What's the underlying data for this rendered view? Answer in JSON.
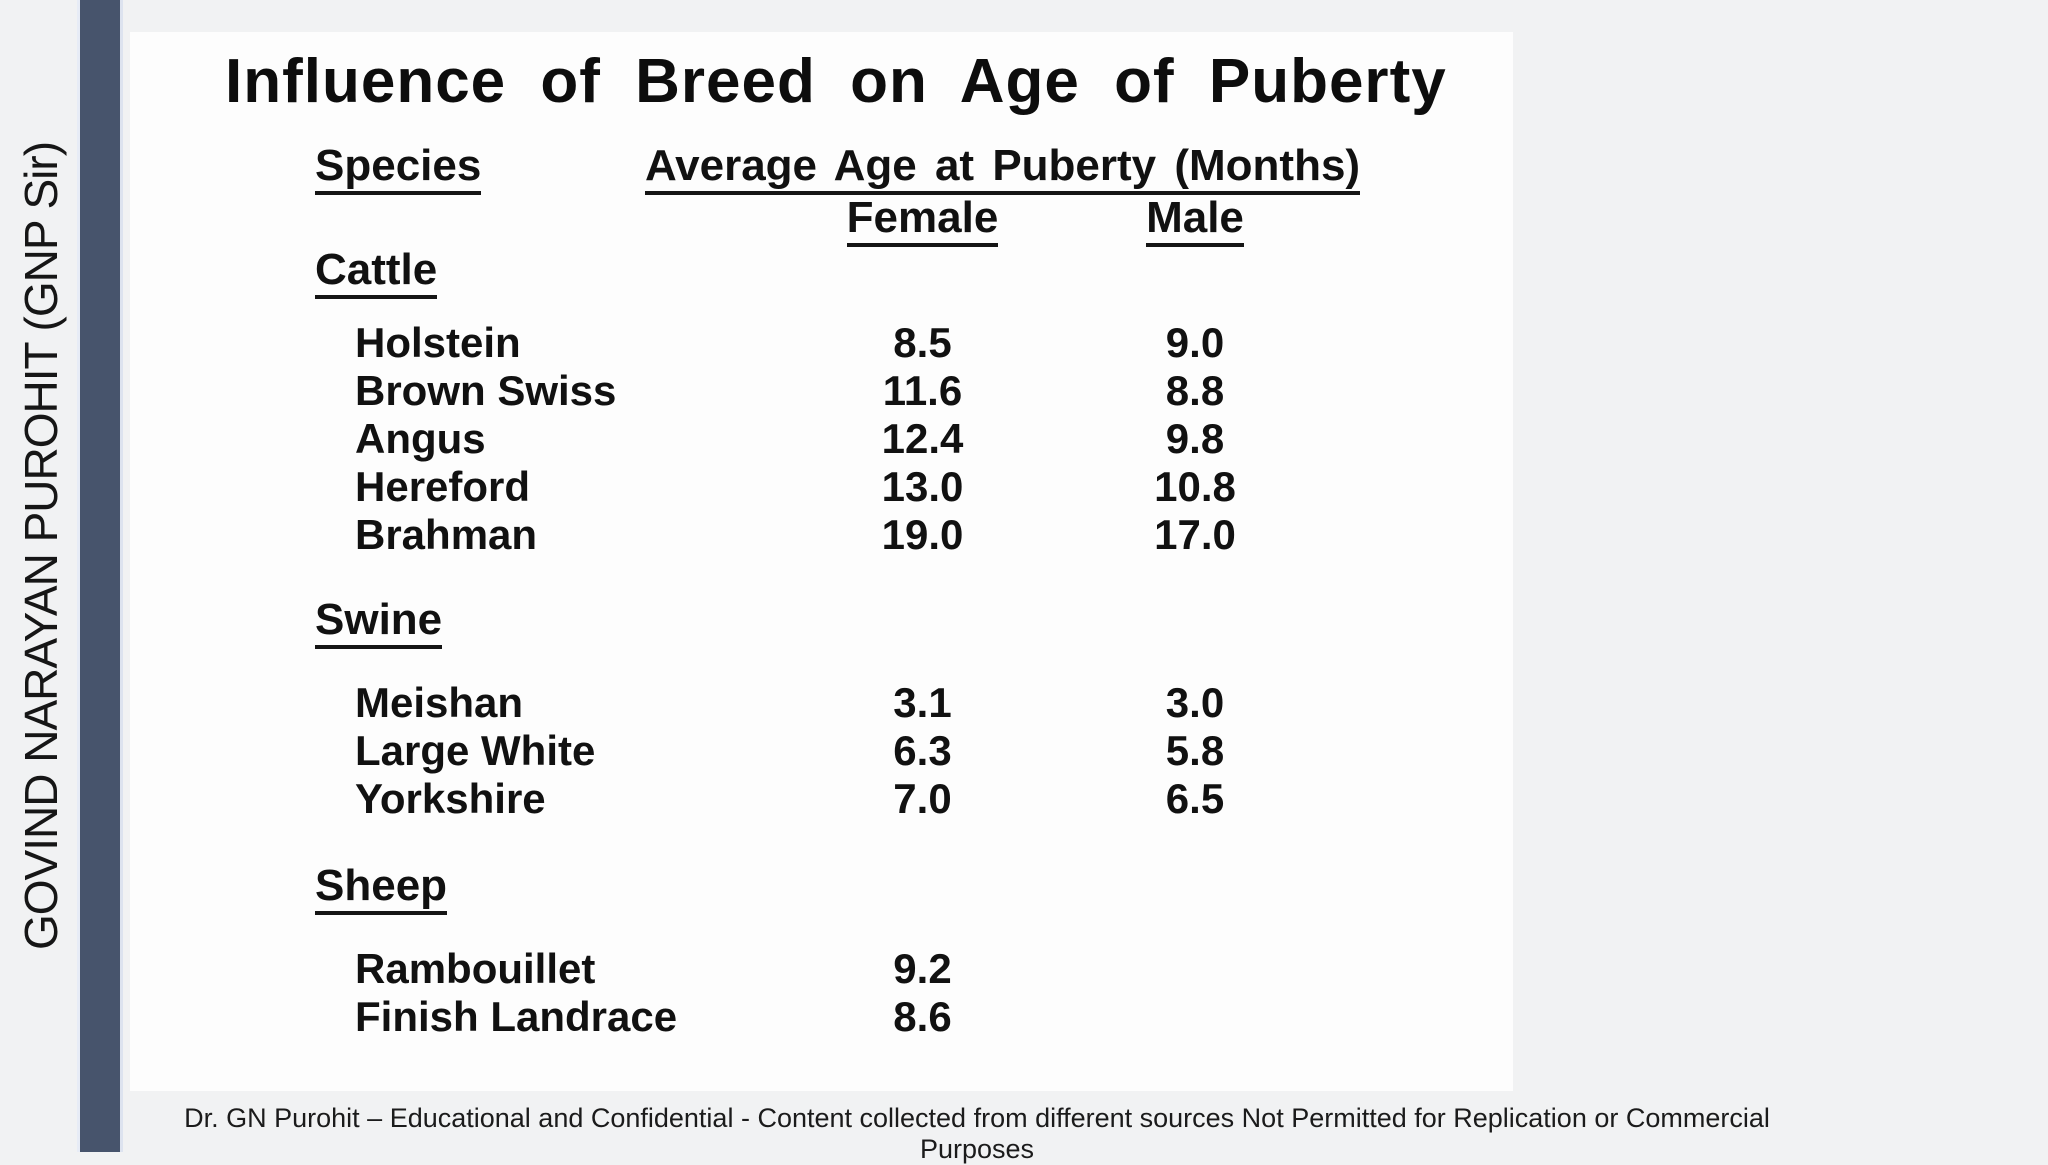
{
  "colors": {
    "page_background": "#f1f2f3",
    "sidebar_bar": "#47546c",
    "panel_background": "#fdfdfd",
    "text": "#111111"
  },
  "sidebar": {
    "watermark": "GOVIND NARAYAN PUROHIT (GNP Sir)"
  },
  "slide": {
    "title": "Influence of Breed on Age of Puberty",
    "table": {
      "col_species": "Species",
      "col_group": "Average Age at Puberty (Months)",
      "col_female": "Female",
      "col_male": "Male",
      "sections": [
        {
          "name": "Cattle",
          "rows": [
            {
              "breed": "Holstein",
              "female": "8.5",
              "male": "9.0"
            },
            {
              "breed": "Brown Swiss",
              "female": "11.6",
              "male": "8.8"
            },
            {
              "breed": "Angus",
              "female": "12.4",
              "male": "9.8"
            },
            {
              "breed": "Hereford",
              "female": "13.0",
              "male": "10.8"
            },
            {
              "breed": "Brahman",
              "female": "19.0",
              "male": "17.0"
            }
          ]
        },
        {
          "name": "Swine",
          "rows": [
            {
              "breed": "Meishan",
              "female": "3.1",
              "male": "3.0"
            },
            {
              "breed": "Large White",
              "female": "6.3",
              "male": "5.8"
            },
            {
              "breed": "Yorkshire",
              "female": "7.0",
              "male": "6.5"
            }
          ]
        },
        {
          "name": "Sheep",
          "rows": [
            {
              "breed": "Rambouillet",
              "female": "9.2",
              "male": ""
            },
            {
              "breed": "Finish Landrace",
              "female": "8.6",
              "male": ""
            }
          ]
        }
      ]
    }
  },
  "footer": {
    "text": "Dr. GN Purohit – Educational and Confidential - Content collected from different sources Not Permitted for Replication or Commercial Purposes"
  }
}
